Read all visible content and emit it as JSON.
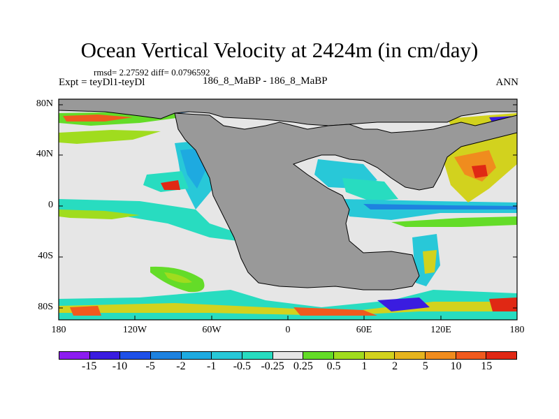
{
  "title": "Ocean Vertical Velocity at 2424m (in cm/day)",
  "stats": "rmsd= 2.27592 diff= 0.0796592",
  "expt": "Expt = teyDl1-teyDl",
  "subtitle": "186_8_MaBP - 186_8_MaBP",
  "season": "ANN",
  "map": {
    "lat_ticks": [
      "80N",
      "40N",
      "0",
      "40S",
      "80S"
    ],
    "lon_ticks": [
      "180",
      "120W",
      "60W",
      "0",
      "60E",
      "120E",
      "180"
    ],
    "background_color": "#e6e6e6",
    "land_color": "#999999"
  },
  "colorbar": {
    "labels": [
      "-15",
      "-10",
      "-5",
      "-2",
      "-1",
      "-0.5",
      "-0.25",
      "0.25",
      "0.5",
      "1",
      "2",
      "5",
      "10",
      "15"
    ],
    "colors": [
      "#8c1cf0",
      "#3a1ce0",
      "#1e50e8",
      "#1e82e0",
      "#1eaae0",
      "#28c8d8",
      "#28dcc0",
      "#e6e6e6",
      "#64dc28",
      "#a0dc1e",
      "#d2d21e",
      "#e6b41e",
      "#f08c1e",
      "#f05a1e",
      "#e02814"
    ]
  }
}
